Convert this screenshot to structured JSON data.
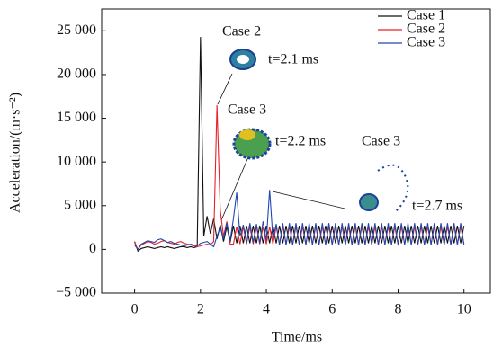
{
  "chart_data": {
    "type": "line",
    "xlabel": "Time/ms",
    "ylabel": "Acceleration/(m·s⁻²)",
    "xlim": [
      -1,
      10.8
    ],
    "ylim": [
      -5000,
      27500
    ],
    "xticks": [
      0,
      2,
      4,
      6,
      8,
      10
    ],
    "yticks": [
      {
        "value": -5000,
        "label": "−5 000"
      },
      0,
      {
        "value": 5000,
        "label": "5 000"
      },
      {
        "value": 10000,
        "label": "10 000"
      },
      {
        "value": 15000,
        "label": "15 000"
      },
      {
        "value": 20000,
        "label": "20 000"
      },
      {
        "value": 25000,
        "label": "25 000"
      }
    ],
    "legend": "upper right",
    "annotations": [
      "Case 2",
      "t=2.1 ms",
      "Case 3",
      "t=2.2 ms",
      "Case 3",
      "t=2.7 ms"
    ],
    "x": [
      0,
      0.1,
      0.2,
      0.3,
      0.4,
      0.5,
      0.6,
      0.7,
      0.8,
      0.9,
      1,
      1.1,
      1.2,
      1.3,
      1.4,
      1.5,
      1.6,
      1.7,
      1.8,
      1.9,
      2,
      2.1,
      2.2,
      2.3,
      2.4,
      2.5,
      2.6,
      2.7,
      2.8,
      2.9,
      3,
      3.1,
      3.2,
      3.3,
      3.4,
      3.5,
      3.6,
      3.7,
      3.8,
      3.9,
      4,
      4.1,
      4.2,
      4.3,
      4.4,
      4.5,
      4.6,
      4.7,
      4.8,
      4.9,
      5,
      5.1,
      5.2,
      5.3,
      5.4,
      5.5,
      5.6,
      5.7,
      5.8,
      5.9,
      6,
      6.1,
      6.2,
      6.3,
      6.4,
      6.5,
      6.6,
      6.7,
      6.8,
      6.9,
      7,
      7.1,
      7.2,
      7.3,
      7.4,
      7.5,
      7.6,
      7.7,
      7.8,
      7.9,
      8,
      8.1,
      8.2,
      8.3,
      8.4,
      8.5,
      8.6,
      8.7,
      8.8,
      8.9,
      9,
      9.1,
      9.2,
      9.3,
      9.4,
      9.5,
      9.6,
      9.7,
      9.8,
      9.9,
      10
    ],
    "series": [
      {
        "name": "Case 1",
        "color": "#111111",
        "values": [
          900,
          -200,
          100,
          200,
          300,
          200,
          100,
          200,
          300,
          200,
          300,
          200,
          100,
          200,
          300,
          300,
          200,
          300,
          200,
          300,
          24300,
          1500,
          3800,
          1800,
          3500,
          1200,
          2800,
          900,
          2600,
          800,
          2700,
          700,
          2700,
          700,
          2700,
          700,
          2700,
          700,
          2700,
          700,
          2700,
          700,
          2700,
          700,
          2700,
          700,
          2700,
          700,
          2700,
          700,
          2700,
          700,
          2700,
          700,
          2700,
          700,
          2700,
          700,
          2700,
          700,
          2700,
          700,
          2700,
          700,
          2700,
          700,
          2700,
          700,
          2700,
          700,
          2700,
          700,
          2700,
          700,
          2700,
          700,
          2700,
          700,
          2700,
          700,
          2700,
          700,
          2700,
          700,
          2700,
          700,
          2700,
          700,
          2700,
          700,
          2700,
          700,
          2700,
          700,
          2700,
          700,
          2700,
          700,
          2700,
          700,
          2700
        ]
      },
      {
        "name": "Case 2",
        "color": "#e8202a",
        "values": [
          800,
          0,
          500,
          700,
          900,
          800,
          600,
          700,
          900,
          1000,
          800,
          700,
          600,
          800,
          900,
          700,
          600,
          500,
          400,
          300,
          400,
          500,
          600,
          500,
          900,
          16500,
          4500,
          1500,
          3200,
          600,
          600,
          2600,
          600,
          2600,
          600,
          2600,
          600,
          2600,
          600,
          2600,
          600,
          2600,
          600,
          2600,
          600,
          2600,
          600,
          2600,
          600,
          2600,
          600,
          2600,
          600,
          2600,
          600,
          2600,
          600,
          2600,
          600,
          2600,
          600,
          2600,
          600,
          2600,
          600,
          2600,
          600,
          2600,
          600,
          2600,
          600,
          2600,
          600,
          2600,
          600,
          2600,
          600,
          2600,
          600,
          2600,
          600,
          2600,
          600,
          2600,
          600,
          2600,
          600,
          2600,
          600,
          2600,
          600,
          2600,
          600,
          2600,
          600,
          2600,
          600,
          2600,
          600,
          2600,
          600
        ]
      },
      {
        "name": "Case 3",
        "color": "#2048b0",
        "values": [
          500,
          0,
          600,
          800,
          1000,
          900,
          800,
          1100,
          1200,
          1000,
          800,
          900,
          700,
          600,
          500,
          400,
          500,
          600,
          500,
          400,
          700,
          800,
          900,
          600,
          300,
          1500,
          2500,
          1200,
          3000,
          1000,
          3500,
          6500,
          1500,
          2800,
          700,
          3000,
          800,
          2900,
          700,
          3200,
          1000,
          6800,
          1200,
          2900,
          500,
          3000,
          500,
          3000,
          500,
          3000,
          500,
          3000,
          500,
          3000,
          500,
          3000,
          500,
          3000,
          500,
          3000,
          500,
          3000,
          500,
          3000,
          500,
          3000,
          500,
          3000,
          500,
          3000,
          500,
          3000,
          500,
          3000,
          500,
          3000,
          500,
          3000,
          500,
          3000,
          500,
          3000,
          500,
          3000,
          500,
          3000,
          500,
          3000,
          500,
          3000,
          500,
          3000,
          500,
          3000,
          500,
          3000,
          500,
          3000,
          500,
          3000,
          500
        ]
      }
    ]
  }
}
